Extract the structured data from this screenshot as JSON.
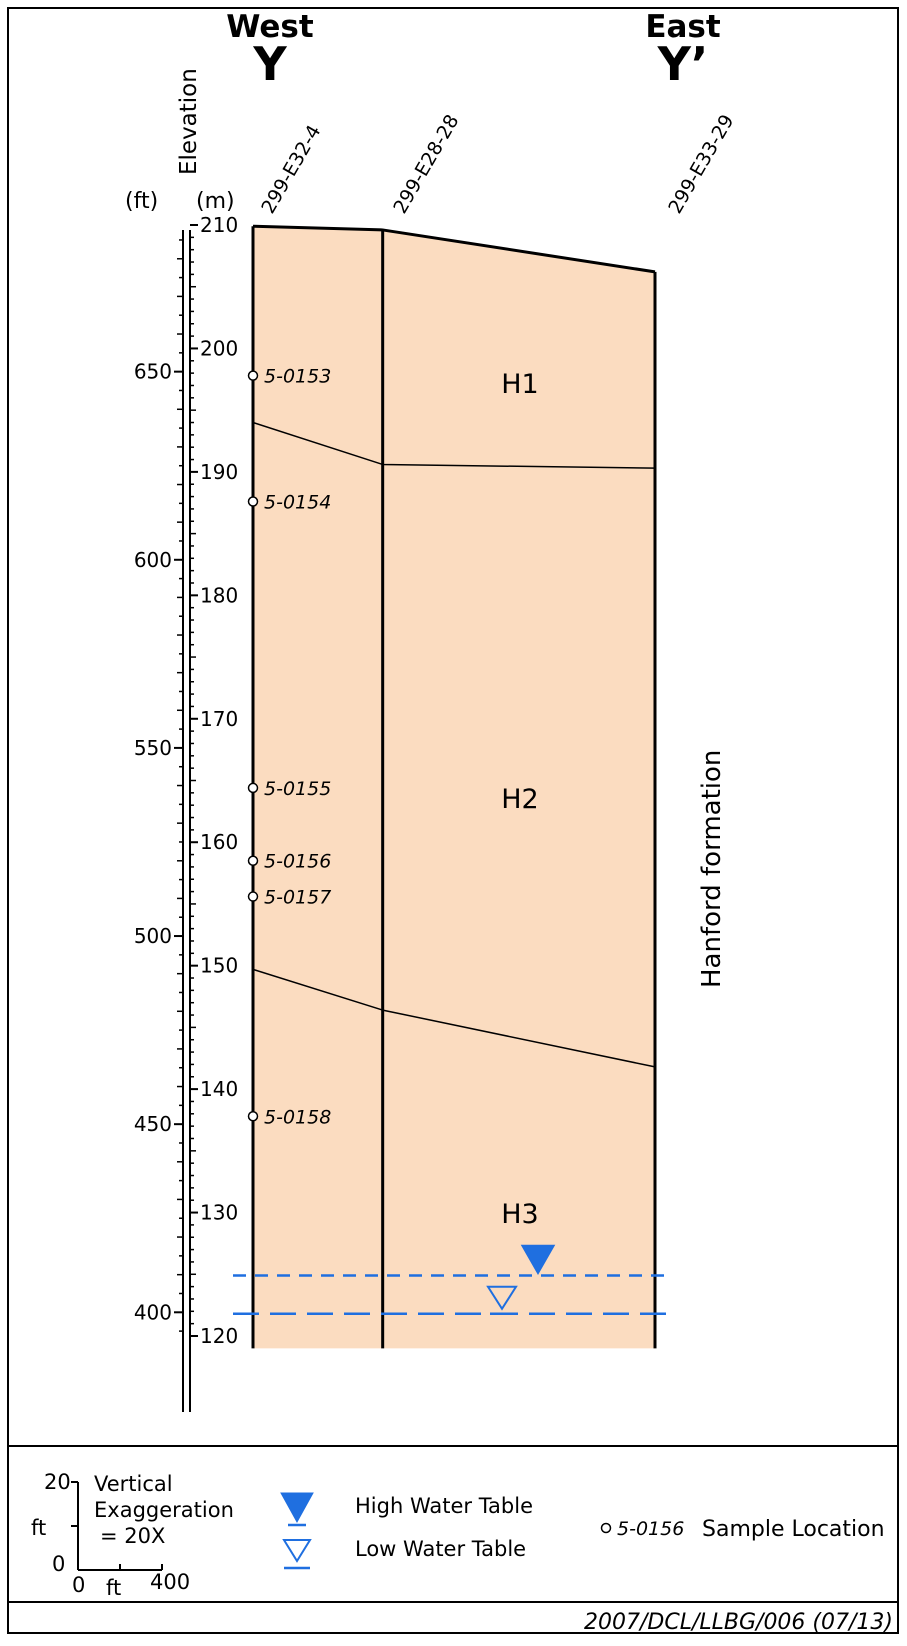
{
  "header": {
    "west_label": "West",
    "west_letter": "Y",
    "east_label": "East",
    "east_letter": "Y’"
  },
  "axis": {
    "title": "Elevation",
    "ft_unit": "(ft)",
    "m_unit": "(m)",
    "m_range": [
      119,
      210
    ],
    "ft_range": [
      390.4,
      689.0
    ],
    "m_ticks": [
      210,
      200,
      190,
      180,
      170,
      160,
      150,
      140,
      130,
      120
    ],
    "ft_ticks": [
      650,
      600,
      550,
      500,
      450,
      400
    ]
  },
  "wells": [
    {
      "name": "299-E32-4",
      "distance_ft": 0,
      "top_m": 209.9
    },
    {
      "name": "299-E28-28",
      "distance_ft": 250,
      "top_m": 209.6
    },
    {
      "name": "299-E33-29",
      "distance_ft": 775,
      "top_m": 206.2
    }
  ],
  "units": [
    {
      "label": "H1",
      "name": "H1"
    },
    {
      "label": "H2",
      "name": "H2"
    },
    {
      "label": "H3",
      "name": "H3"
    }
  ],
  "contacts": [
    {
      "name": "H1/H2",
      "elev_m": [
        194.0,
        190.6,
        190.3
      ]
    },
    {
      "name": "H2/H3",
      "elev_m": [
        149.7,
        146.4,
        141.8
      ]
    }
  ],
  "section_bottom_m": 119.0,
  "formation_label": "Hanford formation",
  "samples": [
    {
      "id": "5-0153",
      "elev_m": 197.8
    },
    {
      "id": "5-0154",
      "elev_m": 187.6
    },
    {
      "id": "5-0155",
      "elev_m": 164.4
    },
    {
      "id": "5-0156",
      "elev_m": 158.5
    },
    {
      "id": "5-0157",
      "elev_m": 155.6
    },
    {
      "id": "5-0158",
      "elev_m": 137.8
    }
  ],
  "water_table": {
    "high_m": 124.9,
    "low_m": 121.8
  },
  "legend": {
    "scale_vertical_max": "20",
    "scale_vertical_unit": "ft",
    "scale_origin": "0",
    "scale_h_origin": "0",
    "scale_horizontal_unit": "ft",
    "scale_horizontal_max": "400",
    "exaggeration_line1": "Vertical",
    "exaggeration_line2": "Exaggeration",
    "exaggeration_line3": "= 20X",
    "high_water": "High Water Table",
    "low_water": "Low Water Table",
    "sample_example_id": "5-0156",
    "sample_label": "Sample Location"
  },
  "footer_code": "2007/DCL/LLBG/006 (07/13)",
  "colors": {
    "fill": "#fbdcc0",
    "water": "#1f6fe0",
    "line": "#000000"
  }
}
